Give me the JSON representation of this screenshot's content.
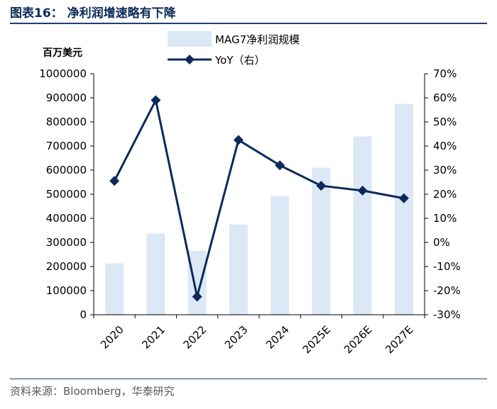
{
  "title": "图表16： 净利润增速略有下降",
  "source": "资料来源：Bloomberg，华泰研究",
  "chart_data": {
    "type": "bar",
    "categories": [
      "2020",
      "2021",
      "2022",
      "2023",
      "2024",
      "2025E",
      "2026E",
      "2027E"
    ],
    "series": [
      {
        "name": "MAG7净利润规模",
        "type": "bar",
        "axis": "left",
        "color": "#dce8f5",
        "values": [
          213000,
          337000,
          265000,
          375000,
          493000,
          610000,
          740000,
          875000
        ]
      },
      {
        "name": "YoY（右）",
        "type": "line",
        "axis": "right",
        "color": "#0b2a5b",
        "values": [
          25.5,
          59,
          -22.5,
          42.5,
          32,
          23.5,
          21.5,
          18.3
        ]
      }
    ],
    "y_left": {
      "unit_label": "百万美元",
      "min": 0,
      "max": 1000000,
      "step": 100000
    },
    "y_right": {
      "min": -30,
      "max": 70,
      "step": 10,
      "suffix": "%"
    },
    "legend_position": "top-center",
    "grid": false
  }
}
